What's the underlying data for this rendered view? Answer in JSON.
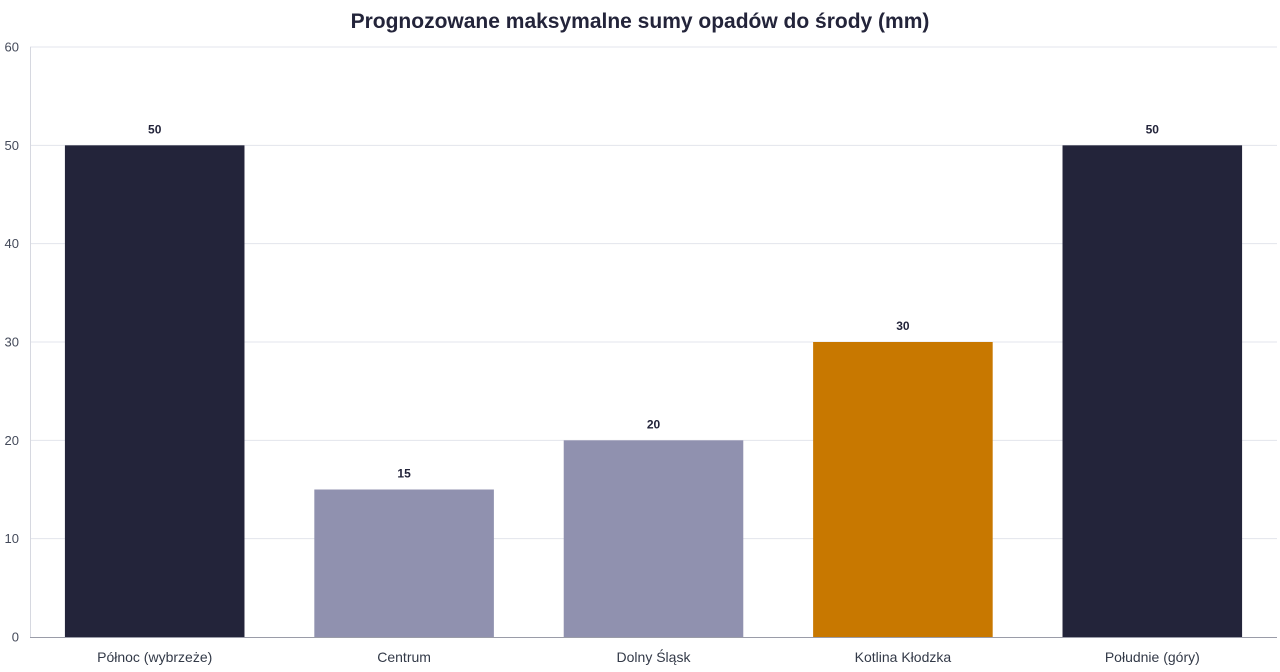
{
  "chart_data": {
    "type": "bar",
    "title": "Prognozowane maksymalne sumy opadów do środy (mm)",
    "xlabel": "",
    "ylabel": "",
    "ylim": [
      0,
      60
    ],
    "yticks": [
      0,
      10,
      20,
      30,
      40,
      50,
      60
    ],
    "grid": true,
    "legend": "none",
    "categories": [
      "Północ (wybrzeże)",
      "Centrum",
      "Dolny Śląsk",
      "Kotlina Kłodzka",
      "Południe (góry)"
    ],
    "values": [
      50,
      15,
      20,
      30,
      50
    ],
    "colors": [
      "#23243a",
      "#9091af",
      "#9091af",
      "#c87800",
      "#23243a"
    ],
    "data_labels": [
      "50",
      "15",
      "20",
      "30",
      "50"
    ]
  }
}
